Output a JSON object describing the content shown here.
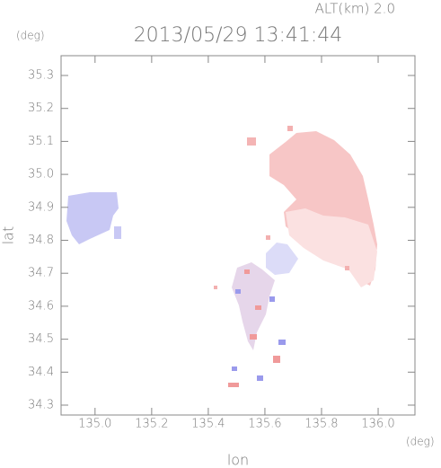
{
  "chart_data": {
    "type": "map",
    "title": "2013/05/29 13:41:44",
    "subtitle": "ALT(km) 2.0",
    "x_label": "lon",
    "y_label": "lat",
    "x_unit": "(deg)",
    "y_unit": "(deg)",
    "xlim": [
      134.88,
      136.13
    ],
    "ylim": [
      34.27,
      35.36
    ],
    "xticks": [
      {
        "value": 135,
        "label": "135.0"
      },
      135.2,
      135.4,
      135.6,
      135.8,
      {
        "value": 136,
        "label": "136.0"
      }
    ],
    "yticks": [
      34.3,
      34.4,
      34.5,
      34.6,
      34.7,
      34.8,
      34.9,
      {
        "value": 35,
        "label": "35.0"
      },
      35.1,
      35.2,
      35.3
    ]
  }
}
